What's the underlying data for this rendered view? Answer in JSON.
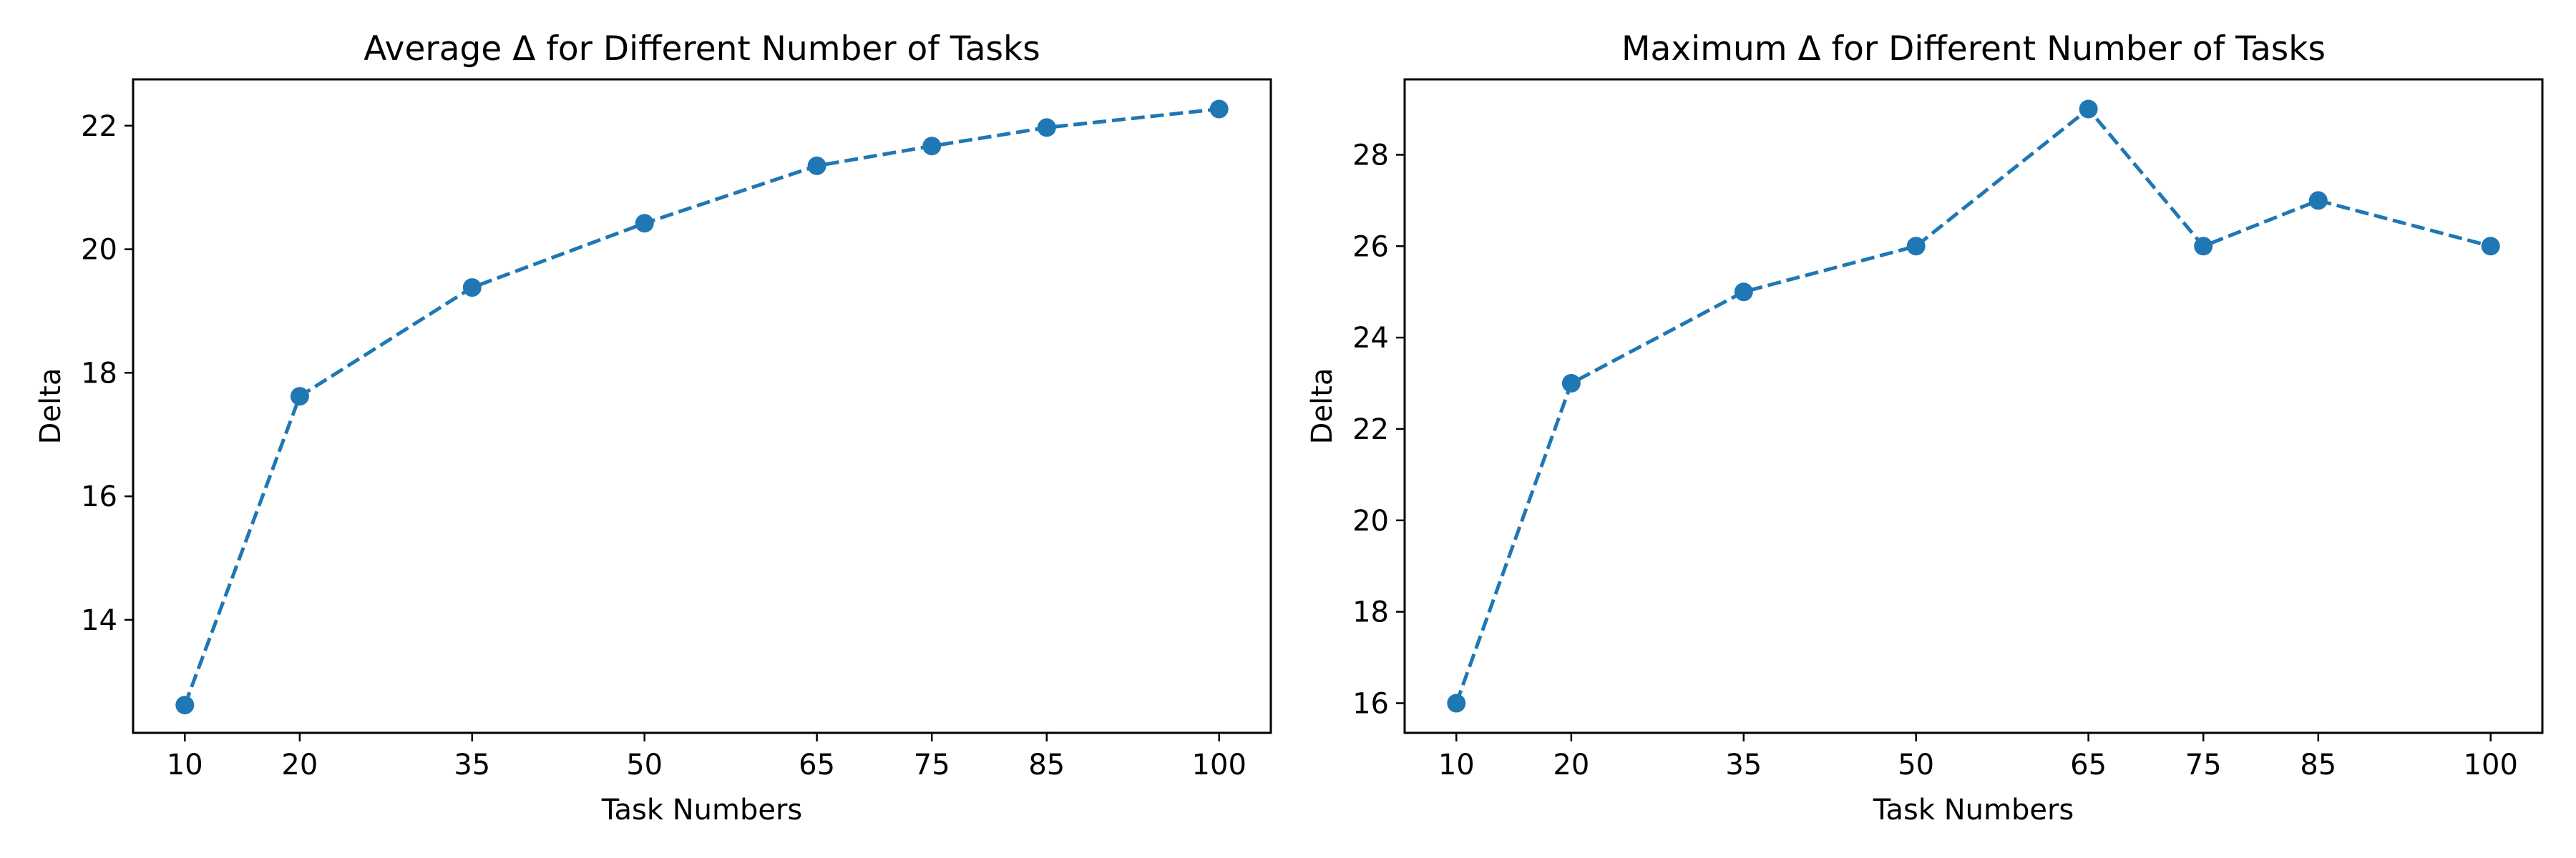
{
  "chart_data": [
    {
      "type": "line",
      "title": "Average Δ for Different Number of Tasks",
      "xlabel": "Task Numbers",
      "ylabel": "Delta",
      "x": [
        10,
        20,
        35,
        50,
        65,
        75,
        85,
        100
      ],
      "x_ticks": [
        "10",
        "20",
        "35",
        "50",
        "65",
        "75",
        "85",
        "100"
      ],
      "y_ticks": [
        "14",
        "16",
        "18",
        "20",
        "22"
      ],
      "y_tick_values": [
        14,
        16,
        18,
        20,
        22
      ],
      "series": [
        {
          "values": [
            12.62,
            17.62,
            19.38,
            20.42,
            21.35,
            21.67,
            21.97,
            22.27
          ],
          "color": "#1f77b4",
          "line_style": "dashed",
          "marker": "circle"
        }
      ],
      "xlim": [
        5.5,
        104.5
      ],
      "ylim": [
        12.17,
        22.75
      ],
      "grid": false,
      "legend": false
    },
    {
      "type": "line",
      "title": "Maximum Δ for Different Number of Tasks",
      "xlabel": "Task Numbers",
      "ylabel": "Delta",
      "x": [
        10,
        20,
        35,
        50,
        65,
        75,
        85,
        100
      ],
      "x_ticks": [
        "10",
        "20",
        "35",
        "50",
        "65",
        "75",
        "85",
        "100"
      ],
      "y_ticks": [
        "16",
        "18",
        "20",
        "22",
        "24",
        "26",
        "28"
      ],
      "y_tick_values": [
        16,
        18,
        20,
        22,
        24,
        26,
        28
      ],
      "series": [
        {
          "values": [
            16,
            23,
            25,
            26,
            29,
            26,
            27,
            26
          ],
          "color": "#1f77b4",
          "line_style": "dashed",
          "marker": "circle"
        }
      ],
      "xlim": [
        5.5,
        104.5
      ],
      "ylim": [
        15.35,
        29.65
      ],
      "grid": false,
      "legend": false
    }
  ]
}
